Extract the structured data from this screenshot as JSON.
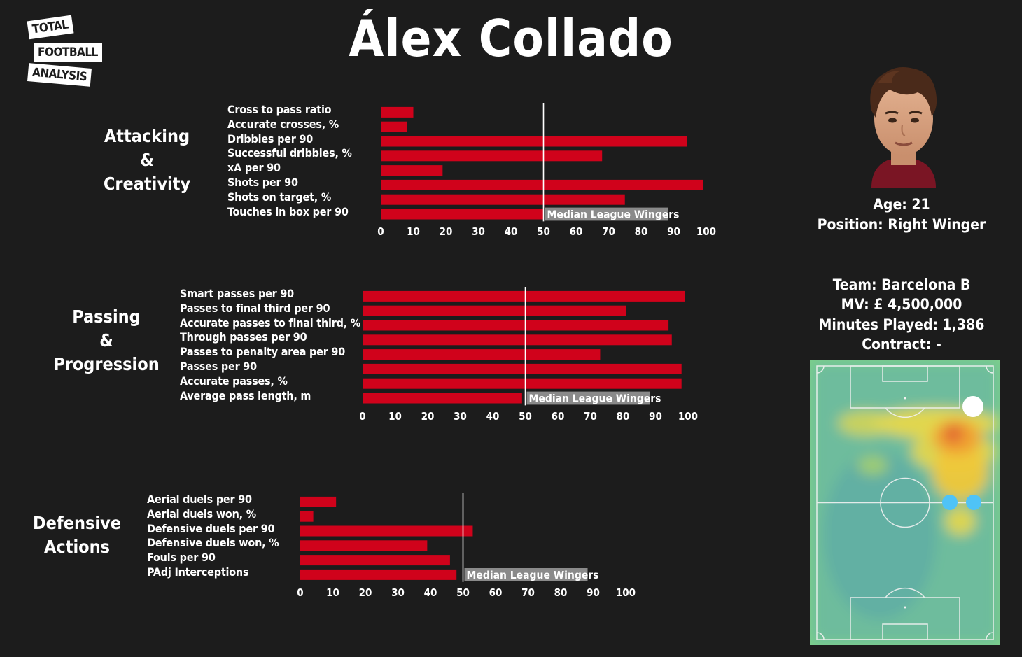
{
  "logo": {
    "line1": "TOTAL",
    "line2": "FOOTBALL",
    "line3": "ANALYSIS"
  },
  "title": "Álex Collado",
  "colors": {
    "bar": "#d0021b",
    "median_line": "#ffffff",
    "median_label_bg": "#8a8a8a",
    "background": "#1c1c1c"
  },
  "player": {
    "age": "Age: 21",
    "position": "Position: Right Winger",
    "team": "Team: Barcelona B",
    "mv": "MV: £ 4,500,000",
    "minutes": "Minutes Played: 1,386",
    "contract": "Contract: -"
  },
  "chart_data": [
    {
      "type": "bar",
      "orientation": "horizontal",
      "title": "Attacking\n&\nCreativity",
      "categories": [
        "Cross to pass ratio",
        "Accurate crosses, %",
        "Dribbles per 90",
        "Successful dribbles, %",
        "xA per 90",
        "Shots per 90",
        "Shots on target, %",
        "Touches in box per 90"
      ],
      "values": [
        10,
        8,
        94,
        68,
        19,
        99,
        75,
        50
      ],
      "xlim": [
        0,
        100
      ],
      "xticks": [
        0,
        10,
        20,
        30,
        40,
        50,
        60,
        70,
        80,
        90,
        100
      ],
      "median_value": 50,
      "median_label": "Median League Wingers"
    },
    {
      "type": "bar",
      "orientation": "horizontal",
      "title": "Passing\n&\nProgression",
      "categories": [
        "Smart passes per 90",
        "Passes to final third per 90",
        "Accurate passes to final third, %",
        "Through passes per 90",
        "Passes to penalty area per 90",
        "Passes per 90",
        "Accurate passes, %",
        "Average pass length, m"
      ],
      "values": [
        99,
        81,
        94,
        95,
        73,
        98,
        98,
        49
      ],
      "xlim": [
        0,
        100
      ],
      "xticks": [
        0,
        10,
        20,
        30,
        40,
        50,
        60,
        70,
        80,
        90,
        100
      ],
      "median_value": 50,
      "median_label": "Median League Wingers"
    },
    {
      "type": "bar",
      "orientation": "horizontal",
      "title": "Defensive\nActions",
      "categories": [
        "Aerial duels per 90",
        "Aerial duels won, %",
        "Defensive duels per 90",
        "Defensive duels won, %",
        "Fouls per 90",
        "PAdj Interceptions"
      ],
      "values": [
        11,
        4,
        53,
        39,
        46,
        48
      ],
      "xlim": [
        0,
        100
      ],
      "xticks": [
        0,
        10,
        20,
        30,
        40,
        50,
        60,
        70,
        80,
        90,
        100
      ],
      "median_value": 50,
      "median_label": "Median League Wingers"
    }
  ]
}
